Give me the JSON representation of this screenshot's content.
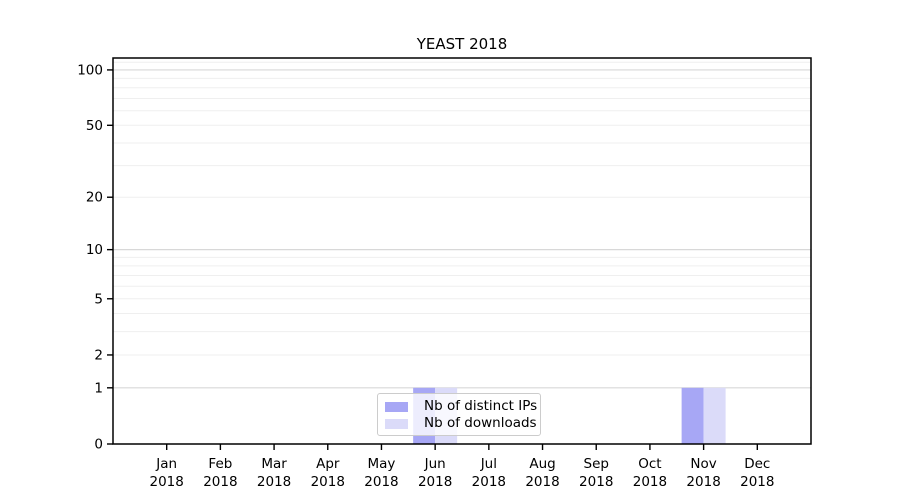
{
  "page": {
    "background_color": "#ffffff"
  },
  "chart_data": {
    "type": "bar",
    "title": "YEAST 2018",
    "categories": [
      "Jan",
      "Feb",
      "Mar",
      "Apr",
      "May",
      "Jun",
      "Jul",
      "Aug",
      "Sep",
      "Oct",
      "Nov",
      "Dec"
    ],
    "category_year": "2018",
    "series": [
      {
        "name": "Nb of distinct IPs",
        "color": "#a7a7f5",
        "values": [
          0,
          0,
          0,
          0,
          0,
          1,
          0,
          0,
          0,
          0,
          1,
          0
        ]
      },
      {
        "name": "Nb of downloads",
        "color": "#dbdbf9",
        "values": [
          0,
          0,
          0,
          0,
          0,
          1,
          0,
          0,
          0,
          0,
          1,
          0
        ]
      }
    ],
    "y_axis": {
      "scale": "log1p",
      "tick_labels": [
        "0",
        "1",
        "2",
        "5",
        "10",
        "20",
        "50",
        "100"
      ],
      "tick_values": [
        0,
        1,
        2,
        5,
        10,
        20,
        50,
        100
      ],
      "major_grid_values": [
        1,
        10,
        100
      ],
      "minor_grid_values": [
        2,
        3,
        4,
        5,
        6,
        7,
        8,
        9,
        20,
        30,
        40,
        50,
        60,
        70,
        80,
        90,
        110
      ],
      "min": 0,
      "max": 116
    },
    "legend": {
      "position": "lower center",
      "framed": true
    },
    "grid": true,
    "colors": {
      "major_grid": "#d8d8d8",
      "minor_grid": "#efefef",
      "spine": "#000000",
      "text": "#000000"
    }
  }
}
